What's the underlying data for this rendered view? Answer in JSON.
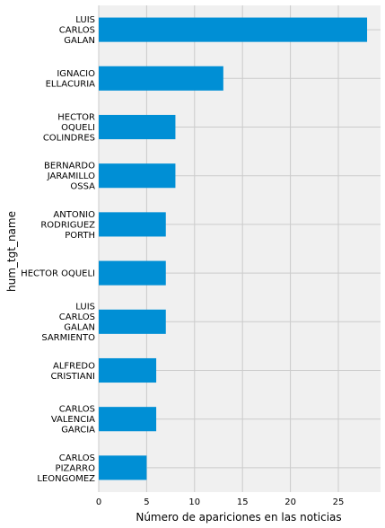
{
  "chart_data": {
    "type": "bar",
    "orientation": "horizontal",
    "categories": [
      "LUIS CARLOS GALAN",
      "IGNACIO ELLACURIA",
      "HECTOR OQUELI COLINDRES",
      "BERNARDO JARAMILLO OSSA",
      "ANTONIO RODRIGUEZ PORTH",
      "HECTOR OQUELI",
      "LUIS CARLOS GALAN SARMIENTO",
      "ALFREDO CRISTIANI",
      "CARLOS VALENCIA GARCIA",
      "CARLOS PIZARRO LEONGOMEZ"
    ],
    "category_label_lines": [
      [
        "LUIS",
        "CARLOS",
        "GALAN"
      ],
      [
        "IGNACIO",
        "ELLACURIA"
      ],
      [
        "HECTOR",
        "OQUELI",
        "COLINDRES"
      ],
      [
        "BERNARDO",
        "JARAMILLO",
        "OSSA"
      ],
      [
        "ANTONIO",
        "RODRIGUEZ",
        "PORTH"
      ],
      [
        "HECTOR OQUELI"
      ],
      [
        "LUIS",
        "CARLOS",
        "GALAN",
        "SARMIENTO"
      ],
      [
        "ALFREDO",
        "CRISTIANI"
      ],
      [
        "CARLOS",
        "VALENCIA",
        "GARCIA"
      ],
      [
        "CARLOS",
        "PIZARRO",
        "LEONGOMEZ"
      ]
    ],
    "values": [
      28,
      13,
      8,
      8,
      7,
      7,
      7,
      6,
      6,
      5
    ],
    "xlabel": "Número de apariciones en las noticias",
    "ylabel": "hum_tgt_name",
    "xlim": [
      0,
      29.4
    ],
    "xticks": [
      0,
      5,
      10,
      15,
      20,
      25
    ],
    "xtick_labels": [
      "0",
      "5",
      "10",
      "15",
      "20",
      "25"
    ],
    "grid": true,
    "bar_color": "#008fd5",
    "background_color": "#f0f0f0",
    "grid_color": "#cbcbcb"
  }
}
